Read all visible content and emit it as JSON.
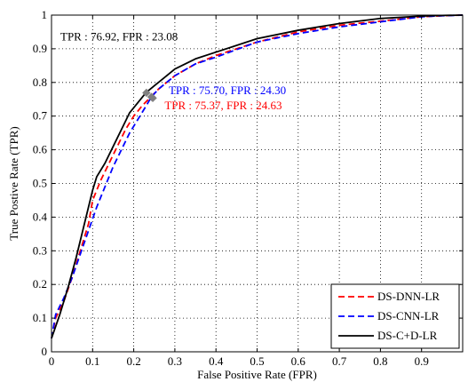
{
  "chart_data": {
    "type": "line",
    "xlabel": "False Positive Rate (FPR)",
    "ylabel": "True Postive Rate (TPR)",
    "xlim": [
      0,
      1
    ],
    "ylim": [
      0,
      1
    ],
    "xticks": [
      "0",
      "0.1",
      "0.2",
      "0.3",
      "0.4",
      "0.5",
      "0.6",
      "0.7",
      "0.8",
      "0.9"
    ],
    "yticks": [
      "0",
      "0.1",
      "0.2",
      "0.3",
      "0.4",
      "0.5",
      "0.6",
      "0.7",
      "0.8",
      "0.9",
      "1"
    ],
    "grid": "dotted",
    "legend_position": "bottom-right",
    "series": [
      {
        "name": "DS-DNN-LR",
        "color": "#ff0000",
        "style": "dashed",
        "x": [
          0,
          0.01,
          0.03,
          0.05,
          0.07,
          0.09,
          0.1,
          0.12,
          0.14,
          0.16,
          0.18,
          0.2,
          0.22,
          0.24,
          0.26,
          0.28,
          0.3,
          0.35,
          0.4,
          0.5,
          0.6,
          0.7,
          0.8,
          0.9,
          0.95,
          1
        ],
        "y": [
          0.04,
          0.1,
          0.15,
          0.22,
          0.3,
          0.38,
          0.45,
          0.51,
          0.56,
          0.61,
          0.66,
          0.7,
          0.73,
          0.755,
          0.78,
          0.8,
          0.82,
          0.855,
          0.88,
          0.92,
          0.95,
          0.97,
          0.982,
          0.995,
          0.998,
          1
        ]
      },
      {
        "name": "DS-CNN-LR",
        "color": "#0000ff",
        "style": "dashed",
        "x": [
          0,
          0.01,
          0.03,
          0.05,
          0.07,
          0.09,
          0.11,
          0.13,
          0.15,
          0.17,
          0.19,
          0.21,
          0.23,
          0.243,
          0.26,
          0.28,
          0.3,
          0.35,
          0.4,
          0.5,
          0.6,
          0.7,
          0.8,
          0.9,
          0.95,
          1
        ],
        "y": [
          0.04,
          0.11,
          0.16,
          0.22,
          0.29,
          0.36,
          0.43,
          0.49,
          0.55,
          0.6,
          0.65,
          0.69,
          0.73,
          0.757,
          0.78,
          0.8,
          0.82,
          0.855,
          0.875,
          0.92,
          0.945,
          0.965,
          0.98,
          0.995,
          0.998,
          1
        ]
      },
      {
        "name": "DS-C+D-LR",
        "color": "#000000",
        "style": "solid",
        "x": [
          0,
          0.02,
          0.04,
          0.06,
          0.08,
          0.1,
          0.11,
          0.13,
          0.15,
          0.17,
          0.19,
          0.21,
          0.23,
          0.25,
          0.27,
          0.3,
          0.35,
          0.4,
          0.5,
          0.6,
          0.7,
          0.8,
          0.9,
          0.95,
          1
        ],
        "y": [
          0.04,
          0.11,
          0.19,
          0.28,
          0.38,
          0.48,
          0.52,
          0.56,
          0.61,
          0.66,
          0.71,
          0.74,
          0.77,
          0.79,
          0.81,
          0.84,
          0.87,
          0.89,
          0.93,
          0.955,
          0.975,
          0.99,
          0.997,
          0.999,
          1
        ]
      }
    ],
    "annotations": [
      {
        "text": "TPR : 76.92, FPR : 23.08",
        "color": "#000000",
        "x": 0.0,
        "y": 0.925,
        "marker": [
          0.2308,
          0.7692
        ]
      },
      {
        "text": "TPR : 75.70, FPR : 24.30",
        "color": "#0000ff",
        "x": 0.285,
        "y": 0.765,
        "marker": [
          0.243,
          0.757
        ]
      },
      {
        "text": "TPR : 75.37, FPR : 24.63",
        "color": "#ff0000",
        "x": 0.275,
        "y": 0.72,
        "marker": [
          0.2463,
          0.7537
        ]
      }
    ]
  }
}
